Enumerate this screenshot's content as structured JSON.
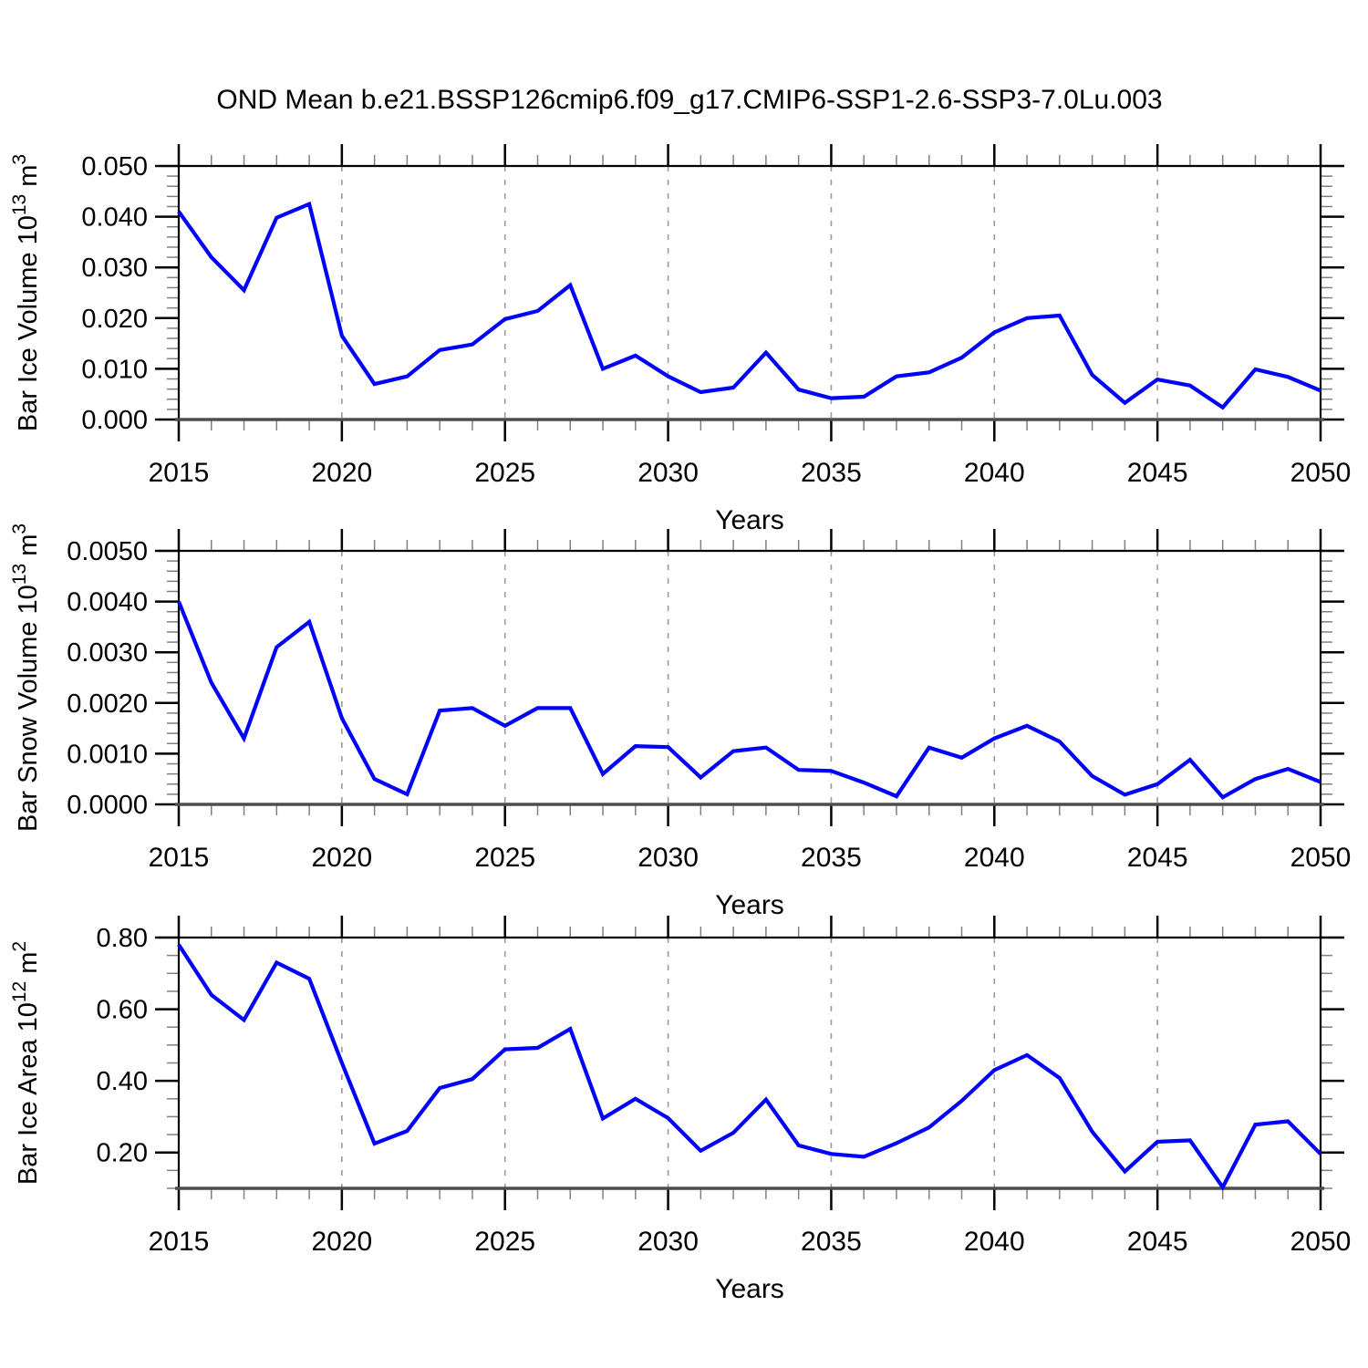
{
  "title": "OND Mean b.e21.BSSP126cmip6.f09_g17.CMIP6-SSP1-2.6-SSP3-7.0Lu.003",
  "colors": {
    "line": "#0000FF",
    "axis": "#000000",
    "bottom_axis": "#4d4d4d",
    "major_tick": "#000000",
    "minor_tick": "#808080",
    "gridline": "#9a9a9a"
  },
  "x_axis": {
    "label": "Years",
    "start": 2015,
    "end": 2050,
    "major_step": 5,
    "minor_step": 1,
    "tick_labels": [
      "2015",
      "2020",
      "2025",
      "2030",
      "2035",
      "2040",
      "2045",
      "2050"
    ],
    "gridline_years": [
      2020,
      2025,
      2030,
      2035,
      2040,
      2045
    ]
  },
  "chart_data": [
    {
      "type": "line",
      "name": "ice-volume",
      "ylabel": {
        "prefix": "Bar Ice Volume 10",
        "exp": "13",
        "mid": " m",
        "unit_exp": "3"
      },
      "ylim": [
        0.0,
        0.05
      ],
      "y_ticks": [
        0.0,
        0.01,
        0.02,
        0.03,
        0.04,
        0.05
      ],
      "y_tick_labels": [
        "0.000",
        "0.010",
        "0.020",
        "0.030",
        "0.040",
        "0.050"
      ],
      "y_minor_step": 0.002,
      "x": [
        2015,
        2016,
        2017,
        2018,
        2019,
        2020,
        2021,
        2022,
        2023,
        2024,
        2025,
        2026,
        2027,
        2028,
        2029,
        2030,
        2031,
        2032,
        2033,
        2034,
        2035,
        2036,
        2037,
        2038,
        2039,
        2040,
        2041,
        2042,
        2043,
        2044,
        2045,
        2046,
        2047,
        2048,
        2049,
        2050
      ],
      "values": [
        0.041,
        0.032,
        0.0255,
        0.0398,
        0.0425,
        0.0165,
        0.007,
        0.0085,
        0.0137,
        0.0148,
        0.0198,
        0.0214,
        0.0265,
        0.01,
        0.0126,
        0.0085,
        0.0054,
        0.0063,
        0.0132,
        0.0059,
        0.0042,
        0.0045,
        0.0085,
        0.0093,
        0.0122,
        0.0172,
        0.02,
        0.0205,
        0.0088,
        0.0033,
        0.0079,
        0.0067,
        0.0024,
        0.0099,
        0.0084,
        0.0057
      ]
    },
    {
      "type": "line",
      "name": "snow-volume",
      "ylabel": {
        "prefix": "Bar Snow Volume 10",
        "exp": "13",
        "mid": " m",
        "unit_exp": "3"
      },
      "ylim": [
        0.0,
        0.005
      ],
      "y_ticks": [
        0.0,
        0.001,
        0.002,
        0.003,
        0.004,
        0.005
      ],
      "y_tick_labels": [
        "0.0000",
        "0.0010",
        "0.0020",
        "0.0030",
        "0.0040",
        "0.0050"
      ],
      "y_minor_step": 0.0002,
      "x": [
        2015,
        2016,
        2017,
        2018,
        2019,
        2020,
        2021,
        2022,
        2023,
        2024,
        2025,
        2026,
        2027,
        2028,
        2029,
        2030,
        2031,
        2032,
        2033,
        2034,
        2035,
        2036,
        2037,
        2038,
        2039,
        2040,
        2041,
        2042,
        2043,
        2044,
        2045,
        2046,
        2047,
        2048,
        2049,
        2050
      ],
      "values": [
        0.004,
        0.0024,
        0.0013,
        0.0031,
        0.0036,
        0.0017,
        0.0005,
        0.0002,
        0.00185,
        0.0019,
        0.00155,
        0.0019,
        0.0019,
        0.0006,
        0.00115,
        0.00113,
        0.00053,
        0.00105,
        0.00112,
        0.00068,
        0.00066,
        0.00043,
        0.00016,
        0.00112,
        0.00092,
        0.0013,
        0.00155,
        0.00124,
        0.00056,
        0.00019,
        0.0004,
        0.00088,
        0.00014,
        0.0005,
        0.0007,
        0.00044
      ]
    },
    {
      "type": "line",
      "name": "ice-area",
      "ylabel": {
        "prefix": "Bar Ice Area 10",
        "exp": "12",
        "mid": " m",
        "unit_exp": "2"
      },
      "ylim": [
        0.1,
        0.8
      ],
      "y_ticks": [
        0.2,
        0.4,
        0.6,
        0.8
      ],
      "y_tick_labels": [
        "0.20",
        "0.40",
        "0.60",
        "0.80"
      ],
      "y_minor_step": 0.05,
      "x": [
        2015,
        2016,
        2017,
        2018,
        2019,
        2020,
        2021,
        2022,
        2023,
        2024,
        2025,
        2026,
        2027,
        2028,
        2029,
        2030,
        2031,
        2032,
        2033,
        2034,
        2035,
        2036,
        2037,
        2038,
        2039,
        2040,
        2041,
        2042,
        2043,
        2044,
        2045,
        2046,
        2047,
        2048,
        2049,
        2050
      ],
      "values": [
        0.78,
        0.64,
        0.57,
        0.73,
        0.685,
        0.45,
        0.225,
        0.26,
        0.38,
        0.405,
        0.488,
        0.492,
        0.545,
        0.295,
        0.35,
        0.296,
        0.205,
        0.255,
        0.348,
        0.22,
        0.196,
        0.188,
        0.226,
        0.27,
        0.344,
        0.43,
        0.472,
        0.408,
        0.258,
        0.147,
        0.23,
        0.234,
        0.103,
        0.278,
        0.287,
        0.196
      ]
    }
  ]
}
